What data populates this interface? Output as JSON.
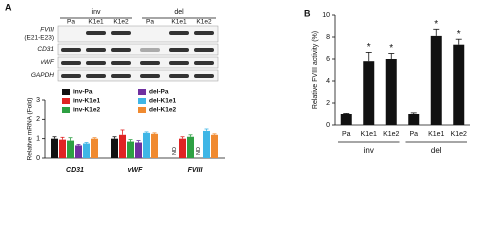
{
  "panel_labels": [
    "A",
    "B"
  ],
  "blot": {
    "conditions": [
      "inv",
      "del"
    ],
    "lanes": [
      "Pa",
      "K1e1",
      "K1e2",
      "Pa",
      "K1e1",
      "K1e2"
    ],
    "rows": [
      {
        "label": "FVIII",
        "sublabel": "(E21-E23)"
      },
      {
        "label": "CD31"
      },
      {
        "label": "vWF"
      },
      {
        "label": "GAPDH"
      }
    ]
  },
  "chart_data": [
    {
      "type": "grouped-bar",
      "y_label": "Relative mRNA (Fold)",
      "categories": [
        "CD31",
        "vWF",
        "FVIII"
      ],
      "ylim": [
        0,
        3
      ],
      "yticks": [
        0,
        1,
        2,
        3
      ],
      "series": [
        {
          "name": "inv-Pa",
          "color": "#111111",
          "values": [
            1.0,
            1.0,
            null
          ],
          "errors": [
            0.1,
            0.1,
            null
          ],
          "value_labels": [
            null,
            null,
            "ND"
          ]
        },
        {
          "name": "inv-K1e1",
          "color": "#e02424",
          "values": [
            0.95,
            1.2,
            1.0
          ],
          "errors": [
            0.12,
            0.25,
            0.1
          ],
          "value_labels": [
            null,
            null,
            null
          ]
        },
        {
          "name": "inv-K1e2",
          "color": "#2ea043",
          "values": [
            0.9,
            0.85,
            1.1
          ],
          "errors": [
            0.15,
            0.1,
            0.1
          ],
          "value_labels": [
            null,
            null,
            null
          ]
        },
        {
          "name": "del-Pa",
          "color": "#7030a0",
          "values": [
            0.65,
            0.8,
            null
          ],
          "errors": [
            0.05,
            0.1,
            null
          ],
          "value_labels": [
            null,
            null,
            "ND"
          ]
        },
        {
          "name": "del-K1e1",
          "color": "#3fb6e6",
          "values": [
            0.75,
            1.3,
            1.4
          ],
          "errors": [
            0.05,
            0.05,
            0.1
          ],
          "value_labels": [
            null,
            null,
            null
          ]
        },
        {
          "name": "del-K1e2",
          "color": "#f08a30",
          "values": [
            1.0,
            1.25,
            1.2
          ],
          "errors": [
            0.05,
            0.05,
            0.05
          ],
          "value_labels": [
            null,
            null,
            null
          ]
        }
      ]
    },
    {
      "type": "bar",
      "y_label": "Relative FVIII  activity (%)",
      "categories": [
        "Pa",
        "K1e1",
        "K1e2",
        "Pa",
        "K1e1",
        "K1e2"
      ],
      "groups": [
        "inv",
        "del"
      ],
      "values": [
        1.0,
        5.8,
        6.0,
        1.0,
        8.1,
        7.3
      ],
      "errors": [
        0.05,
        0.8,
        0.5,
        0.1,
        0.6,
        0.5
      ],
      "value_labels": [
        null,
        "*",
        "*",
        null,
        "*",
        "*"
      ],
      "color": "#111111",
      "ylim": [
        0,
        10
      ],
      "yticks": [
        0,
        2,
        4,
        6,
        8,
        10
      ]
    }
  ]
}
